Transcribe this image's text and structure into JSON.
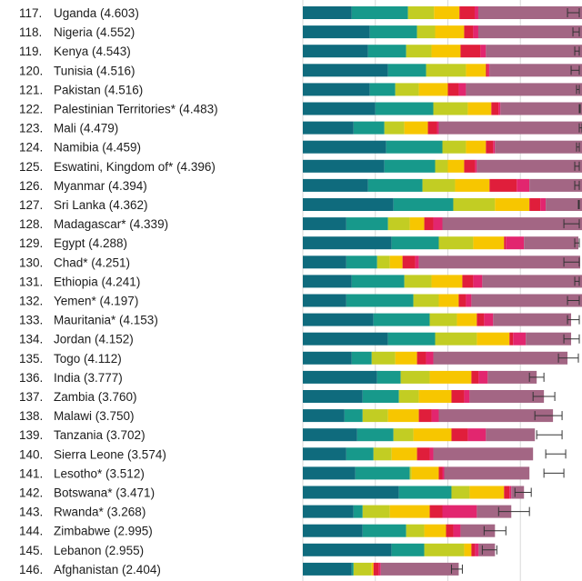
{
  "chart_data": {
    "type": "bar",
    "orientation": "horizontal",
    "stacked": true,
    "title": "",
    "xlabel": "",
    "ylabel": "",
    "xlim": [
      0,
      7.7
    ],
    "grid": true,
    "gridlines_x": [
      0,
      2,
      4,
      6
    ],
    "legend": "none",
    "series": [
      {
        "name": "",
        "color": "#0f6b7d"
      },
      {
        "name": "",
        "color": "#17998b"
      },
      {
        "name": "",
        "color": "#c2cd23"
      },
      {
        "name": "",
        "color": "#f7c600"
      },
      {
        "name": "",
        "color": "#e01e3b"
      },
      {
        "name": "",
        "color": "#e2266f"
      },
      {
        "name": "",
        "color": "#a36684"
      }
    ],
    "rows": [
      {
        "rank": "117.",
        "label": "Uganda (4.603)",
        "segments": [
          1.35,
          1.55,
          0.72,
          0.7,
          0.42,
          0.1,
          3.24
        ],
        "ci": [
          7.3,
          7.95
        ]
      },
      {
        "rank": "118.",
        "label": "Nigeria (4.552)",
        "segments": [
          1.85,
          1.3,
          0.5,
          0.8,
          0.25,
          0.14,
          3.01
        ],
        "ci": [
          7.45,
          8.0
        ]
      },
      {
        "rank": "119.",
        "label": "Kenya (4.543)",
        "segments": [
          1.8,
          1.05,
          0.7,
          0.8,
          0.55,
          0.15,
          2.92
        ],
        "ci": [
          7.5,
          8.08
        ]
      },
      {
        "rank": "120.",
        "label": "Tunisia (4.516)",
        "segments": [
          2.35,
          1.05,
          1.1,
          0.55,
          0.05,
          0.05,
          2.65
        ],
        "ci": [
          7.4,
          7.85
        ]
      },
      {
        "rank": "121.",
        "label": "Pakistan (4.516)",
        "segments": [
          1.85,
          0.7,
          0.65,
          0.8,
          0.3,
          0.2,
          3.45
        ],
        "ci": [
          7.55,
          7.95
        ]
      },
      {
        "rank": "122.",
        "label": "Palestinian Territories* (4.483)",
        "segments": [
          2.0,
          1.6,
          0.95,
          0.65,
          0.2,
          0.05,
          2.9
        ],
        "ci": [
          7.65,
          8.15
        ]
      },
      {
        "rank": "123.",
        "label": "Mali (4.479)",
        "segments": [
          1.4,
          0.85,
          0.55,
          0.65,
          0.25,
          0.05,
          4.15
        ],
        "ci": [
          7.7,
          8.0
        ]
      },
      {
        "rank": "124.",
        "label": "Namibia (4.459)",
        "segments": [
          2.3,
          1.55,
          0.65,
          0.55,
          0.2,
          0.05,
          2.6
        ],
        "ci": [
          7.55,
          7.95
        ]
      },
      {
        "rank": "125.",
        "label": "Eswatini, Kingdom of* (4.396)",
        "segments": [
          2.25,
          1.4,
          0.35,
          0.45,
          0.3,
          0.05,
          3.05
        ],
        "ci": [
          7.5,
          8.0
        ]
      },
      {
        "rank": "126.",
        "label": "Myanmar (4.394)",
        "segments": [
          1.8,
          1.5,
          0.9,
          0.95,
          0.75,
          0.35,
          1.5
        ],
        "ci": [
          7.5,
          7.95
        ]
      },
      {
        "rank": "127.",
        "label": "Sri Lanka (4.362)",
        "segments": [
          2.5,
          1.65,
          1.15,
          0.95,
          0.3,
          0.15,
          1.0
        ],
        "ci": [
          7.6,
          8.05
        ]
      },
      {
        "rank": "128.",
        "label": "Madagascar* (4.339)",
        "segments": [
          1.2,
          1.15,
          0.6,
          0.4,
          0.25,
          0.25,
          3.85
        ],
        "ci": [
          7.2,
          7.9
        ]
      },
      {
        "rank": "129.",
        "label": "Egypt (4.288)",
        "segments": [
          2.45,
          1.3,
          0.95,
          0.85,
          0.05,
          0.5,
          1.5
        ],
        "ci": [
          7.5,
          7.8
        ]
      },
      {
        "rank": "130.",
        "label": "Chad* (4.251)",
        "segments": [
          1.2,
          0.85,
          0.35,
          0.35,
          0.35,
          0.1,
          4.45
        ],
        "ci": [
          7.2,
          8.1
        ]
      },
      {
        "rank": "131.",
        "label": "Ethiopia (4.241)",
        "segments": [
          1.35,
          1.45,
          0.75,
          0.85,
          0.3,
          0.25,
          3.1
        ],
        "ci": [
          7.5,
          8.05
        ]
      },
      {
        "rank": "132.",
        "label": "Yemen* (4.197)",
        "segments": [
          1.2,
          1.85,
          0.7,
          0.55,
          0.2,
          0.15,
          3.15
        ],
        "ci": [
          7.3,
          7.9
        ]
      },
      {
        "rank": "133.",
        "label": "Mauritania* (4.153)",
        "segments": [
          1.95,
          1.55,
          0.75,
          0.55,
          0.2,
          0.25,
          2.15
        ],
        "ci": [
          7.3,
          7.75
        ]
      },
      {
        "rank": "134.",
        "label": "Jordan (4.152)",
        "segments": [
          2.35,
          1.3,
          1.15,
          0.9,
          0.1,
          0.35,
          1.25
        ],
        "ci": [
          7.2,
          7.65
        ]
      },
      {
        "rank": "135.",
        "label": "Togo (4.112)",
        "segments": [
          1.35,
          0.55,
          0.65,
          0.6,
          0.25,
          0.2,
          3.7
        ],
        "ci": [
          7.05,
          7.6
        ]
      },
      {
        "rank": "136.",
        "label": "India (3.777)",
        "segments": [
          2.05,
          0.65,
          0.8,
          1.15,
          0.2,
          0.25,
          1.35
        ],
        "ci": [
          6.25,
          6.65
        ]
      },
      {
        "rank": "137.",
        "label": "Zambia (3.760)",
        "segments": [
          1.65,
          1.0,
          0.55,
          0.9,
          0.35,
          0.15,
          2.05
        ],
        "ci": [
          6.35,
          6.95
        ]
      },
      {
        "rank": "138.",
        "label": "Malawi (3.750)",
        "segments": [
          1.15,
          0.5,
          0.7,
          0.85,
          0.35,
          0.2,
          3.15
        ],
        "ci": [
          6.4,
          7.15
        ]
      },
      {
        "rank": "139.",
        "label": "Tanzania (3.702)",
        "segments": [
          1.5,
          1.0,
          0.55,
          1.05,
          0.45,
          0.5,
          1.35
        ],
        "ci": [
          6.45,
          7.15
        ]
      },
      {
        "rank": "140.",
        "label": "Sierra Leone (3.574)",
        "segments": [
          1.2,
          0.75,
          0.5,
          0.7,
          0.35,
          0.1,
          2.75
        ],
        "ci": [
          6.7,
          7.25
        ]
      },
      {
        "rank": "141.",
        "label": "Lesotho* (3.512)",
        "segments": [
          1.45,
          1.5,
          0.05,
          0.75,
          0.1,
          0.05,
          2.35
        ],
        "ci": [
          6.65,
          7.2
        ]
      },
      {
        "rank": "142.",
        "label": "Botswana* (3.471)",
        "segments": [
          2.65,
          1.45,
          0.5,
          0.95,
          0.15,
          0.05,
          0.35
        ],
        "ci": [
          5.85,
          6.3
        ]
      },
      {
        "rank": "143.",
        "label": "Rwanda* (3.268)",
        "segments": [
          1.4,
          0.25,
          0.75,
          1.1,
          0.35,
          0.95,
          0.95
        ],
        "ci": [
          5.4,
          6.25
        ]
      },
      {
        "rank": "144.",
        "label": "Zimbabwe (2.995)",
        "segments": [
          1.65,
          1.2,
          0.5,
          0.6,
          0.2,
          0.2,
          0.95
        ],
        "ci": [
          5.0,
          5.6
        ]
      },
      {
        "rank": "145.",
        "label": "Lebanon (2.955)",
        "segments": [
          2.45,
          0.9,
          1.1,
          0.2,
          0.1,
          0.1,
          0.45
        ],
        "ci": [
          4.95,
          5.35
        ]
      },
      {
        "rank": "146.",
        "label": "Afghanistan (2.404)",
        "segments": [
          1.35,
          0.05,
          0.5,
          0.05,
          0.15,
          0.05,
          2.15
        ],
        "ci": [
          4.1,
          4.4
        ]
      }
    ]
  }
}
